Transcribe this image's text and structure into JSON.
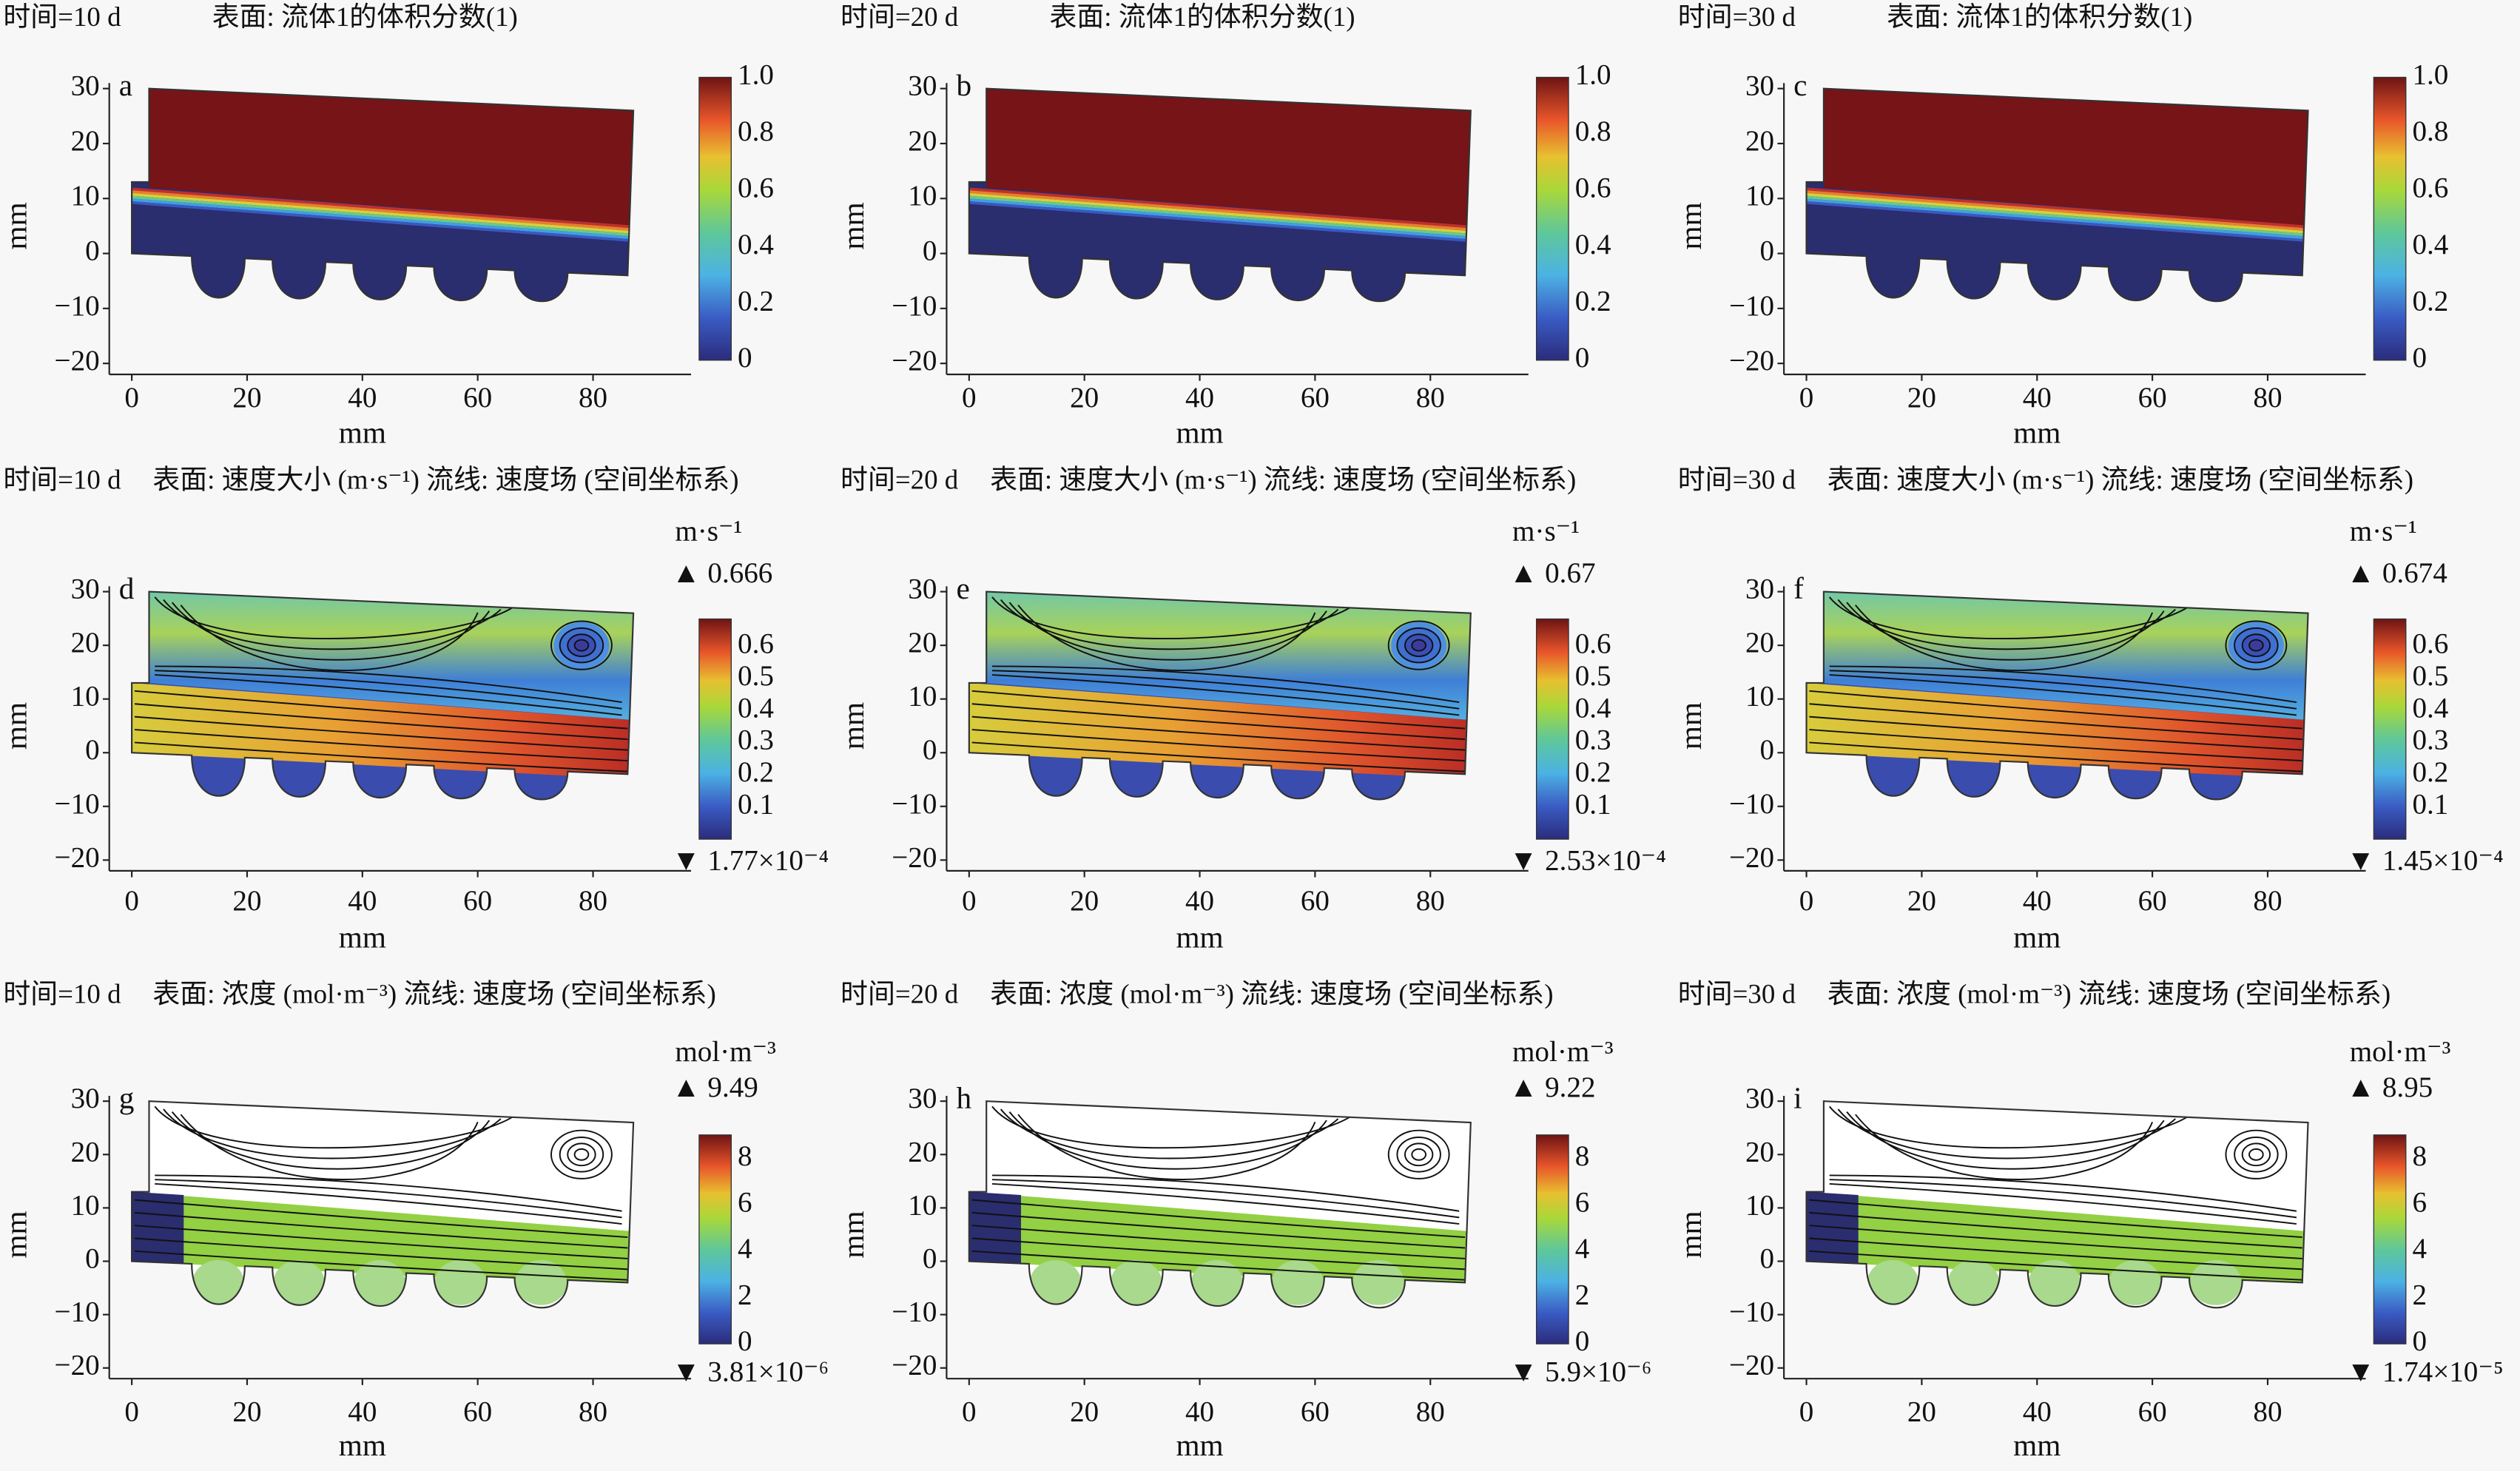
{
  "chart_data": [
    {
      "panel": "a",
      "type": "heatmap",
      "time": "时间=10 d",
      "desc": "表面: 流体1的体积分数(1)",
      "field": "volume_fraction",
      "xlabel": "mm",
      "ylabel": "mm",
      "xticks": [
        "0",
        "20",
        "40",
        "60",
        "80"
      ],
      "yticks": [
        "30",
        "20",
        "10",
        "0",
        "−10",
        "−20"
      ],
      "colorbar": {
        "unit": "",
        "max": "",
        "min": "",
        "ticks": [
          "0",
          "0.2",
          "0.4",
          "0.6",
          "0.8",
          "1.0"
        ]
      }
    },
    {
      "panel": "b",
      "type": "heatmap",
      "time": "时间=20 d",
      "desc": "表面: 流体1的体积分数(1)",
      "field": "volume_fraction",
      "xlabel": "mm",
      "ylabel": "mm",
      "xticks": [
        "0",
        "20",
        "40",
        "60",
        "80"
      ],
      "yticks": [
        "30",
        "20",
        "10",
        "0",
        "−10",
        "−20"
      ],
      "colorbar": {
        "unit": "",
        "max": "",
        "min": "",
        "ticks": [
          "0",
          "0.2",
          "0.4",
          "0.6",
          "0.8",
          "1.0"
        ]
      }
    },
    {
      "panel": "c",
      "type": "heatmap",
      "time": "时间=30 d",
      "desc": "表面: 流体1的体积分数(1)",
      "field": "volume_fraction",
      "xlabel": "mm",
      "ylabel": "mm",
      "xticks": [
        "0",
        "20",
        "40",
        "60",
        "80"
      ],
      "yticks": [
        "30",
        "20",
        "10",
        "0",
        "−10",
        "−20"
      ],
      "colorbar": {
        "unit": "",
        "max": "",
        "min": "",
        "ticks": [
          "0",
          "0.2",
          "0.4",
          "0.6",
          "0.8",
          "1.0"
        ]
      }
    },
    {
      "panel": "d",
      "type": "heatmap",
      "time": "时间=10 d",
      "desc": "表面: 速度大小 (m·s⁻¹) 流线: 速度场 (空间坐标系)",
      "field": "velocity",
      "xlabel": "mm",
      "ylabel": "mm",
      "xticks": [
        "0",
        "20",
        "40",
        "60",
        "80"
      ],
      "yticks": [
        "30",
        "20",
        "10",
        "0",
        "−10",
        "−20"
      ],
      "colorbar": {
        "unit": "m·s⁻¹",
        "max": "▲ 0.666",
        "min": "▼ 1.77×10⁻⁴",
        "ticks": [
          "0.1",
          "0.2",
          "0.3",
          "0.4",
          "0.5",
          "0.6"
        ]
      }
    },
    {
      "panel": "e",
      "type": "heatmap",
      "time": "时间=20 d",
      "desc": "表面: 速度大小 (m·s⁻¹) 流线: 速度场 (空间坐标系)",
      "field": "velocity",
      "xlabel": "mm",
      "ylabel": "mm",
      "xticks": [
        "0",
        "20",
        "40",
        "60",
        "80"
      ],
      "yticks": [
        "30",
        "20",
        "10",
        "0",
        "−10",
        "−20"
      ],
      "colorbar": {
        "unit": "m·s⁻¹",
        "max": "▲ 0.67",
        "min": "▼ 2.53×10⁻⁴",
        "ticks": [
          "0.1",
          "0.2",
          "0.3",
          "0.4",
          "0.5",
          "0.6"
        ]
      }
    },
    {
      "panel": "f",
      "type": "heatmap",
      "time": "时间=30 d",
      "desc": "表面: 速度大小 (m·s⁻¹) 流线: 速度场 (空间坐标系)",
      "field": "velocity",
      "xlabel": "mm",
      "ylabel": "mm",
      "xticks": [
        "0",
        "20",
        "40",
        "60",
        "80"
      ],
      "yticks": [
        "30",
        "20",
        "10",
        "0",
        "−10",
        "−20"
      ],
      "colorbar": {
        "unit": "m·s⁻¹",
        "max": "▲ 0.674",
        "min": "▼ 1.45×10⁻⁴",
        "ticks": [
          "0.1",
          "0.2",
          "0.3",
          "0.4",
          "0.5",
          "0.6"
        ]
      }
    },
    {
      "panel": "g",
      "type": "heatmap",
      "time": "时间=10 d",
      "desc": "表面: 浓度 (mol·m⁻³) 流线: 速度场 (空间坐标系)",
      "field": "concentration",
      "xlabel": "mm",
      "ylabel": "mm",
      "xticks": [
        "0",
        "20",
        "40",
        "60",
        "80"
      ],
      "yticks": [
        "30",
        "20",
        "10",
        "0",
        "−10",
        "−20"
      ],
      "colorbar": {
        "unit": "mol·m⁻³",
        "max": "▲ 9.49",
        "min": "▼ 3.81×10⁻⁶",
        "ticks": [
          "0",
          "2",
          "4",
          "6",
          "8"
        ]
      }
    },
    {
      "panel": "h",
      "type": "heatmap",
      "time": "时间=20 d",
      "desc": "表面: 浓度 (mol·m⁻³) 流线: 速度场 (空间坐标系)",
      "field": "concentration",
      "xlabel": "mm",
      "ylabel": "mm",
      "xticks": [
        "0",
        "20",
        "40",
        "60",
        "80"
      ],
      "yticks": [
        "30",
        "20",
        "10",
        "0",
        "−10",
        "−20"
      ],
      "colorbar": {
        "unit": "mol·m⁻³",
        "max": "▲ 9.22",
        "min": "▼ 5.9×10⁻⁶",
        "ticks": [
          "0",
          "2",
          "4",
          "6",
          "8"
        ]
      }
    },
    {
      "panel": "i",
      "type": "heatmap",
      "time": "时间=30 d",
      "desc": "表面: 浓度 (mol·m⁻³) 流线: 速度场 (空间坐标系)",
      "field": "concentration",
      "xlabel": "mm",
      "ylabel": "mm",
      "xticks": [
        "0",
        "20",
        "40",
        "60",
        "80"
      ],
      "yticks": [
        "30",
        "20",
        "10",
        "0",
        "−10",
        "−20"
      ],
      "colorbar": {
        "unit": "mol·m⁻³",
        "max": "▲ 8.95",
        "min": "▼ 1.74×10⁻⁵",
        "ticks": [
          "0",
          "2",
          "4",
          "6",
          "8"
        ]
      }
    }
  ],
  "colors": {
    "navy": "#2a2d6e",
    "darkred": "#761417",
    "channel_green": "#93d044",
    "well_green": "#a9d98c",
    "well_blue": "#3a4cae"
  }
}
